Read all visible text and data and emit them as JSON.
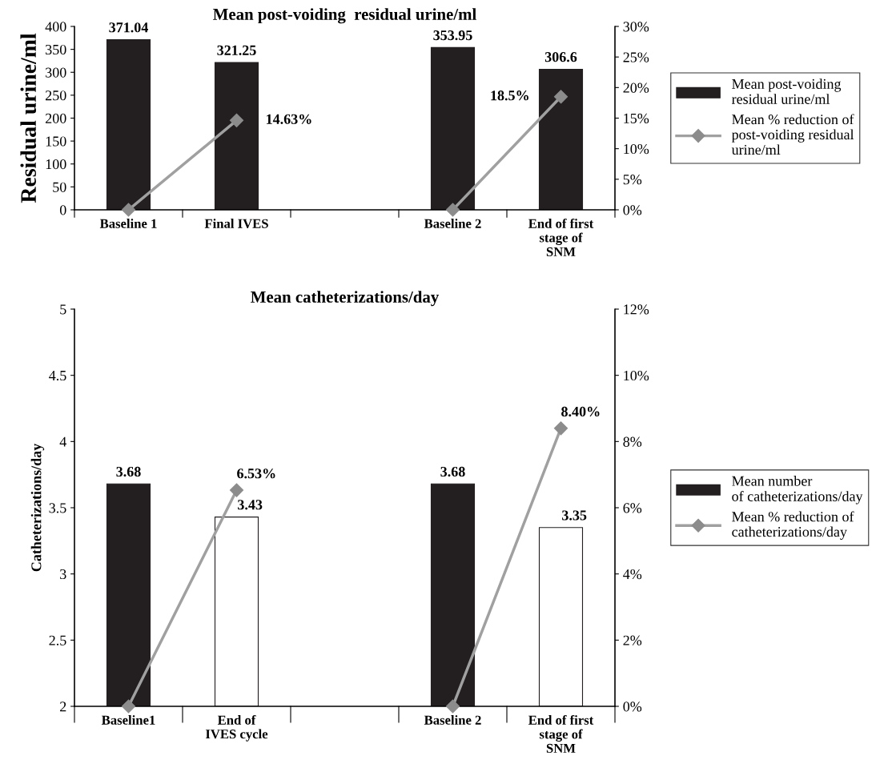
{
  "chart_data": [
    {
      "type": "bar",
      "title": "Mean post-voiding  residual urine/ml",
      "ylabel": "Residual urine/ml",
      "categories": [
        "Baseline 1",
        "Final IVES",
        null,
        "Baseline 2",
        "End of first\nstage of\nSNM"
      ],
      "ylim": [
        0,
        400
      ],
      "yticks": [
        0,
        50,
        100,
        150,
        200,
        250,
        300,
        350,
        400
      ],
      "y2lim": [
        0,
        30
      ],
      "y2ticks": [
        {
          "value": 0,
          "label": "0%"
        },
        {
          "value": 5,
          "label": "5%"
        },
        {
          "value": 10,
          "label": "10%"
        },
        {
          "value": 15,
          "label": "15%"
        },
        {
          "value": 20,
          "label": "20%"
        },
        {
          "value": 25,
          "label": "25%"
        },
        {
          "value": 30,
          "label": "30%"
        }
      ],
      "legend": "right",
      "grid": false,
      "series": [
        {
          "name": "Mean post-voiding\nresidual urine/ml",
          "color": "#231f20",
          "colors": [
            "#231f20",
            "#231f20",
            null,
            "#231f20",
            "#231f20"
          ],
          "values": [
            371.04,
            321.25,
            null,
            353.95,
            306.6
          ],
          "value_labels": [
            "371.04",
            "321.25",
            null,
            "353.95",
            "306.6"
          ]
        },
        {
          "type": "line",
          "axis": "y2",
          "name": "Mean % reduction of\npost-voiding residual\nurine/ml",
          "color": "#a0a0a0",
          "marker": "diamond",
          "values": [
            0,
            14.63,
            null,
            0,
            18.5
          ],
          "value_labels": [
            null,
            "14.63%",
            null,
            null,
            "18.5%"
          ]
        }
      ]
    },
    {
      "type": "bar",
      "title": "Mean catheterizations/day",
      "ylabel": "Catheterizations/day",
      "categories": [
        "Baseline1",
        "End of\nIVES cycle",
        null,
        "Baseline 2",
        "End of first\nstage of\nSNM"
      ],
      "ylim": [
        2,
        5
      ],
      "yticks": [
        2,
        2.5,
        3,
        3.5,
        4,
        4.5,
        5
      ],
      "y2lim": [
        0,
        12
      ],
      "y2ticks": [
        {
          "value": 0,
          "label": "0%"
        },
        {
          "value": 2,
          "label": "2%"
        },
        {
          "value": 4,
          "label": "4%"
        },
        {
          "value": 6,
          "label": "6%"
        },
        {
          "value": 8,
          "label": "8%"
        },
        {
          "value": 10,
          "label": "10%"
        },
        {
          "value": 12,
          "label": "12%"
        }
      ],
      "legend": "right",
      "grid": false,
      "series": [
        {
          "name": "Mean number\nof catheterizations/day",
          "color": "#231f20",
          "colors": [
            "#231f20",
            "#ffffff",
            null,
            "#231f20",
            "#ffffff"
          ],
          "values": [
            3.68,
            3.43,
            null,
            3.68,
            3.35
          ],
          "value_labels": [
            "3.68",
            "3.43",
            null,
            "3.68",
            "3.35"
          ]
        },
        {
          "type": "line",
          "axis": "y2",
          "name": "Mean % reduction of\ncatheterizations/day",
          "color": "#a0a0a0",
          "marker": "diamond",
          "values": [
            0,
            6.53,
            null,
            0,
            8.4
          ],
          "value_labels": [
            null,
            "6.53%",
            null,
            null,
            "8.40%"
          ]
        }
      ]
    }
  ]
}
